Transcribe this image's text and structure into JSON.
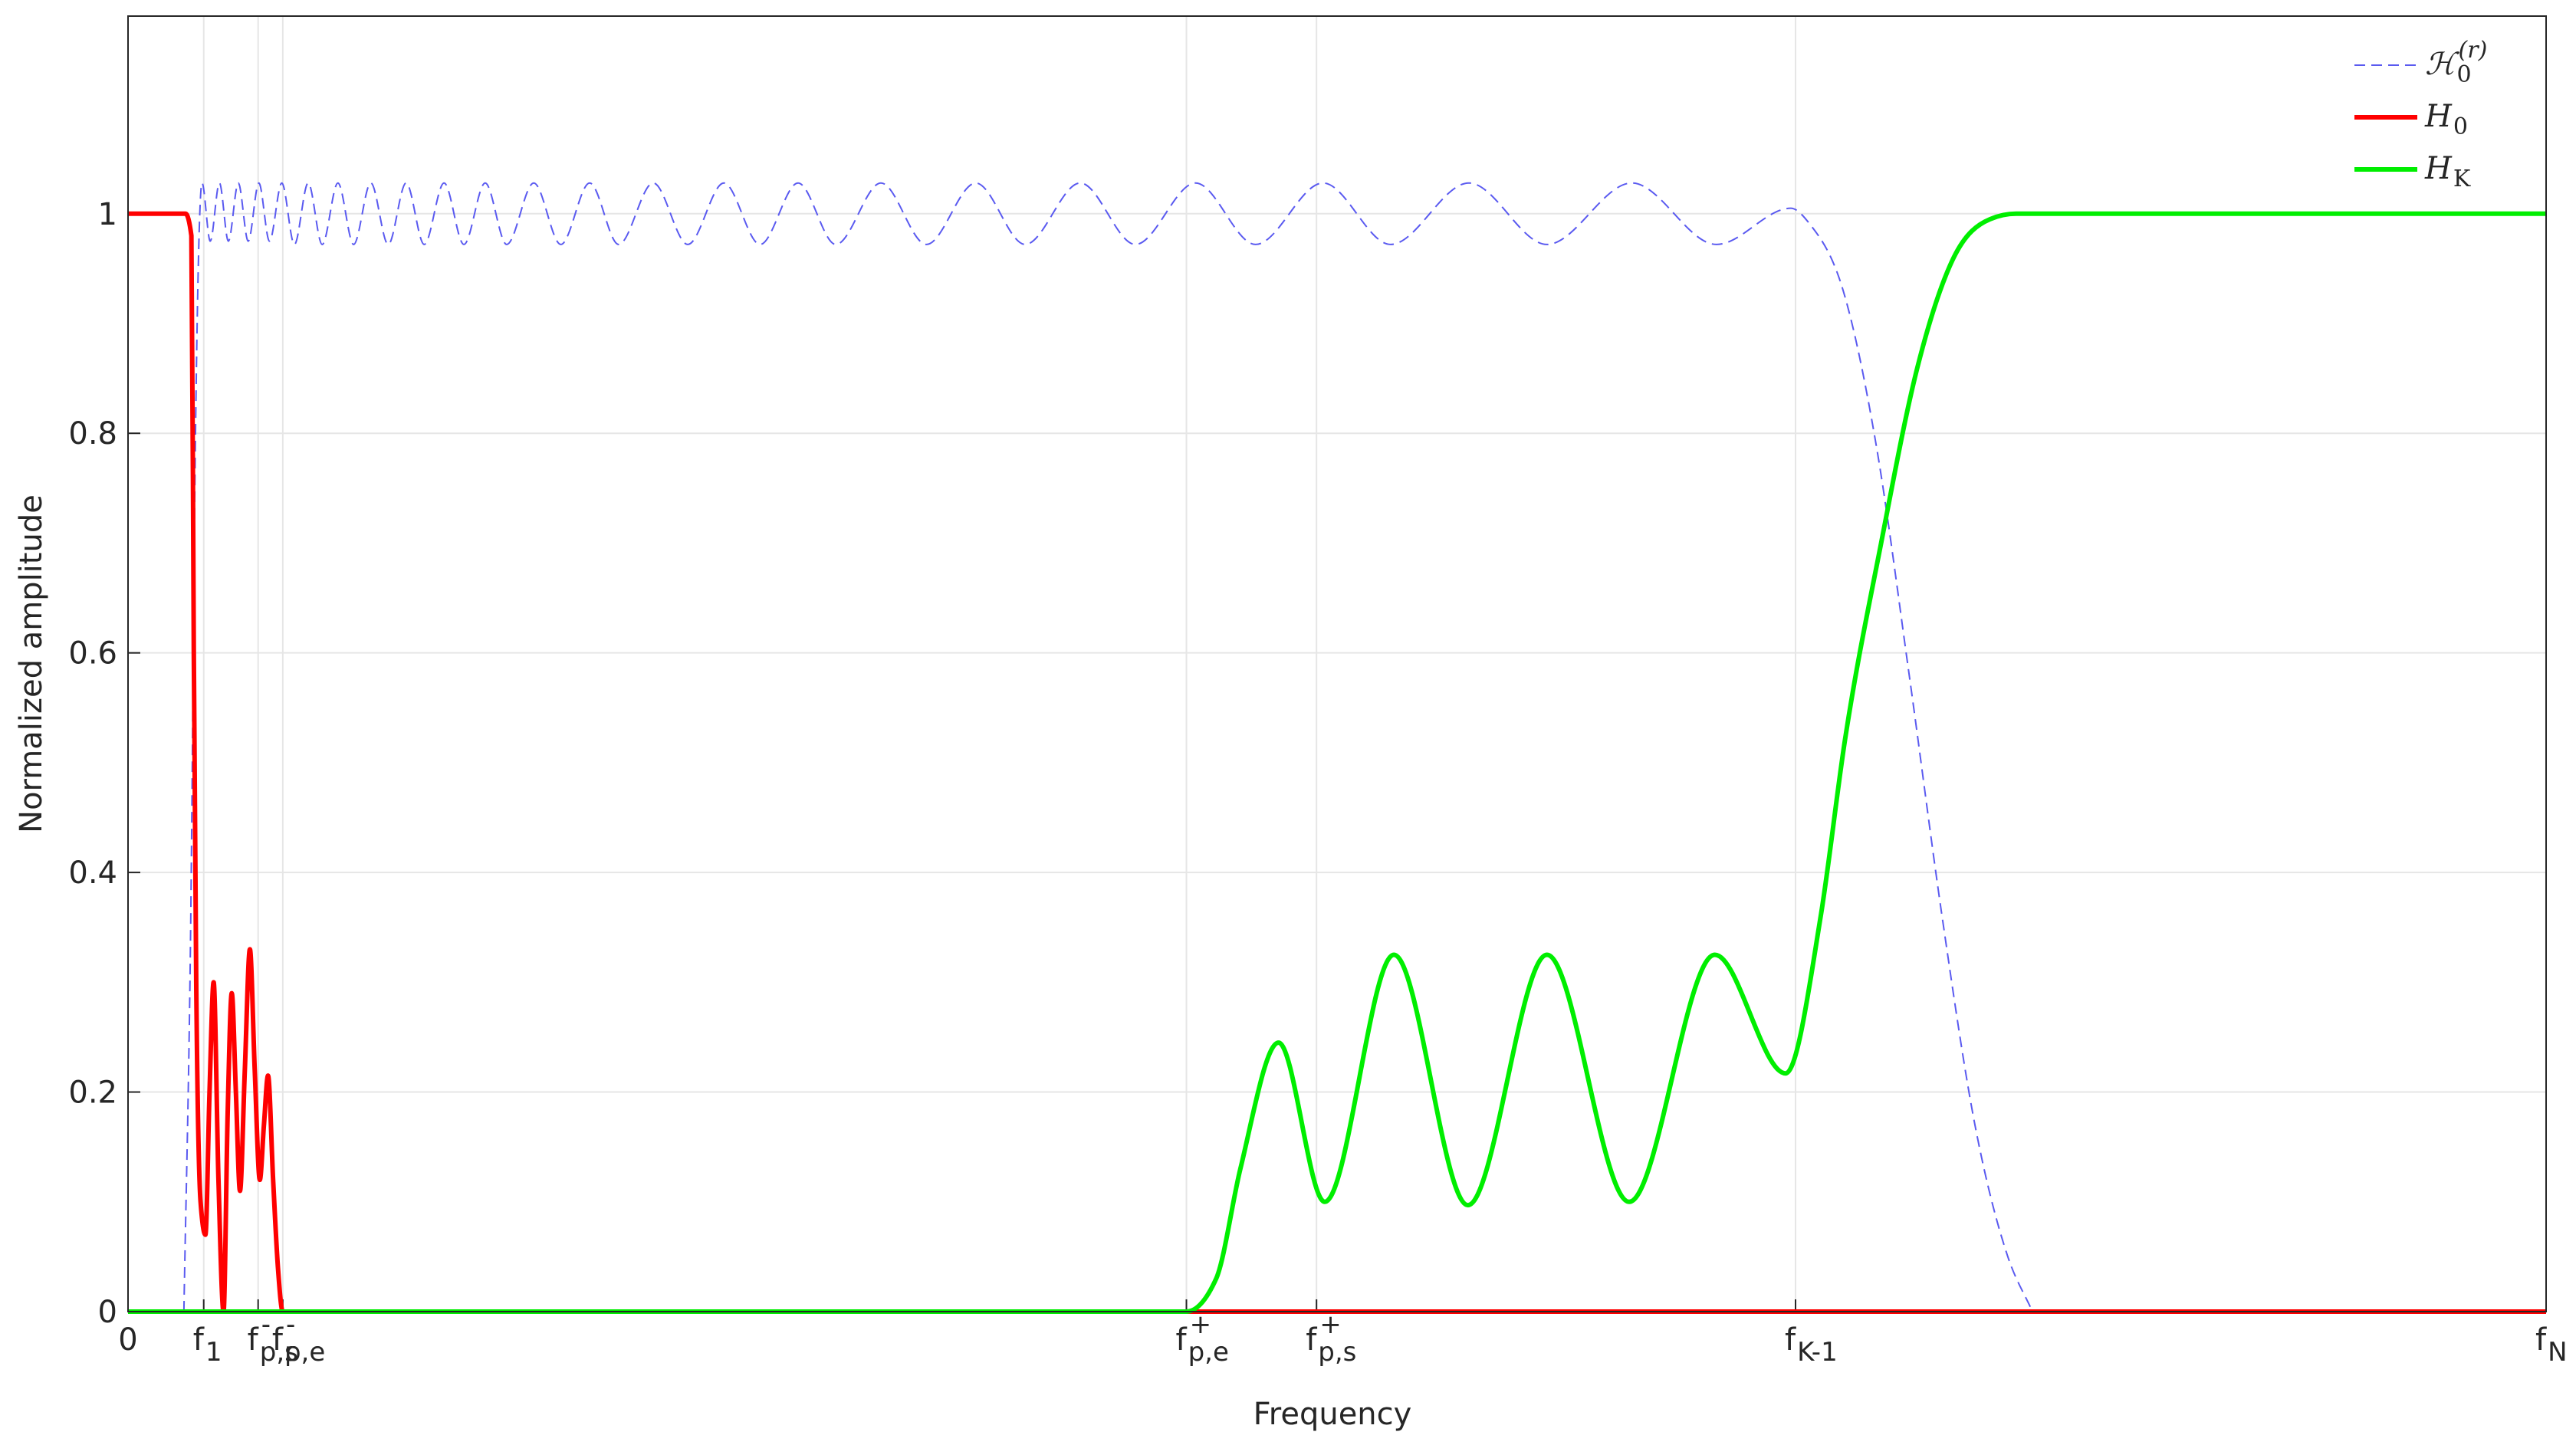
{
  "chart_data": {
    "type": "line",
    "xlabel": "Frequency",
    "ylabel": "Normalized amplitude",
    "xlim": [
      0,
      1
    ],
    "ylim": [
      0,
      1.18
    ],
    "xticks": [
      0,
      {
        "value": 0.0313,
        "label": "f",
        "sub": "1"
      },
      {
        "value": 0.0538,
        "label": "f",
        "sub": "p,s",
        "sup": "-"
      },
      {
        "value": 0.064,
        "label": "f",
        "sub": "p,e",
        "sup": "-"
      },
      {
        "value": 0.4377,
        "label": "f",
        "sub": "p,e",
        "sup": "+"
      },
      {
        "value": 0.4915,
        "label": "f",
        "sub": "p,s",
        "sup": "+"
      },
      {
        "value": 0.6896,
        "label": "f",
        "sub": "K-1"
      },
      {
        "value": 1,
        "label": "f",
        "sub": "N"
      }
    ],
    "yticks": [
      0,
      0.2,
      0.4,
      0.6,
      0.8,
      1
    ],
    "grid": true,
    "legend": "upper right",
    "series": [
      {
        "name": "ℋ",
        "sub": "0",
        "sup": "(r)",
        "color": "#5a5af0",
        "dashed": true,
        "width": 2,
        "x": [
          0.0231,
          0.0259,
          0.0279,
          0.0306,
          0.034,
          0.0378,
          0.0415,
          0.0456,
          0.0497,
          0.0541,
          0.0585,
          0.0636,
          0.0688,
          0.0745,
          0.0803,
          0.0868,
          0.0933,
          0.1004,
          0.1076,
          0.115,
          0.1225,
          0.1307,
          0.1389,
          0.1477,
          0.1566,
          0.1678,
          0.179,
          0.1909,
          0.2029,
          0.2172,
          0.2315,
          0.2464,
          0.2614,
          0.2771,
          0.2927,
          0.3114,
          0.3302,
          0.3506,
          0.371,
          0.3938,
          0.4166,
          0.4415,
          0.4663,
          0.4942,
          0.5221,
          0.5545,
          0.5868,
          0.6219,
          0.6569,
          0.6876,
          0.6957,
          0.7093,
          0.7229,
          0.7366,
          0.7502,
          0.7638,
          0.7774,
          0.7876
        ],
        "values": [
          0,
          0.35,
          0.8,
          1.028,
          0.975,
          1.028,
          0.975,
          1.028,
          0.975,
          1.028,
          0.975,
          1.028,
          0.972,
          1.028,
          0.972,
          1.028,
          0.972,
          1.028,
          0.972,
          1.028,
          0.972,
          1.028,
          0.972,
          1.028,
          0.972,
          1.028,
          0.972,
          1.028,
          0.972,
          1.028,
          0.972,
          1.028,
          0.972,
          1.028,
          0.972,
          1.028,
          0.972,
          1.028,
          0.972,
          1.028,
          0.972,
          1.028,
          0.972,
          1.028,
          0.972,
          1.028,
          0.972,
          1.028,
          0.972,
          1.005,
          0.99,
          0.93,
          0.79,
          0.58,
          0.36,
          0.17,
          0.05,
          0
        ]
      },
      {
        "name": "H",
        "sub": "0",
        "color": "#ff0000",
        "dashed": false,
        "width": 6,
        "x": [
          0,
          0.0238,
          0.0262,
          0.0272,
          0.0282,
          0.03,
          0.032,
          0.0337,
          0.0354,
          0.0374,
          0.0395,
          0.0412,
          0.0429,
          0.0446,
          0.0463,
          0.0483,
          0.0504,
          0.0524,
          0.0545,
          0.0562,
          0.0579,
          0.06,
          0.062,
          0.064,
          1
        ],
        "values": [
          1,
          1,
          0.98,
          0.6,
          0.3,
          0.1,
          0.07,
          0.2,
          0.3,
          0.12,
          0,
          0.18,
          0.29,
          0.2,
          0.11,
          0.22,
          0.33,
          0.22,
          0.12,
          0.17,
          0.215,
          0.12,
          0.04,
          0,
          0
        ]
      },
      {
        "name": "H",
        "sub": "K",
        "color": "#00ee00",
        "dashed": false,
        "width": 6,
        "x": [
          0,
          0.4377,
          0.45,
          0.46,
          0.4758,
          0.4949,
          0.5235,
          0.5541,
          0.5868,
          0.6208,
          0.6562,
          0.6855,
          0.7,
          0.71,
          0.725,
          0.74,
          0.755,
          0.77,
          0.7808,
          1
        ],
        "values": [
          0,
          0,
          0.03,
          0.13,
          0.245,
          0.1,
          0.325,
          0.097,
          0.325,
          0.1,
          0.325,
          0.217,
          0.36,
          0.52,
          0.7,
          0.86,
          0.96,
          0.995,
          1,
          1
        ]
      }
    ]
  }
}
